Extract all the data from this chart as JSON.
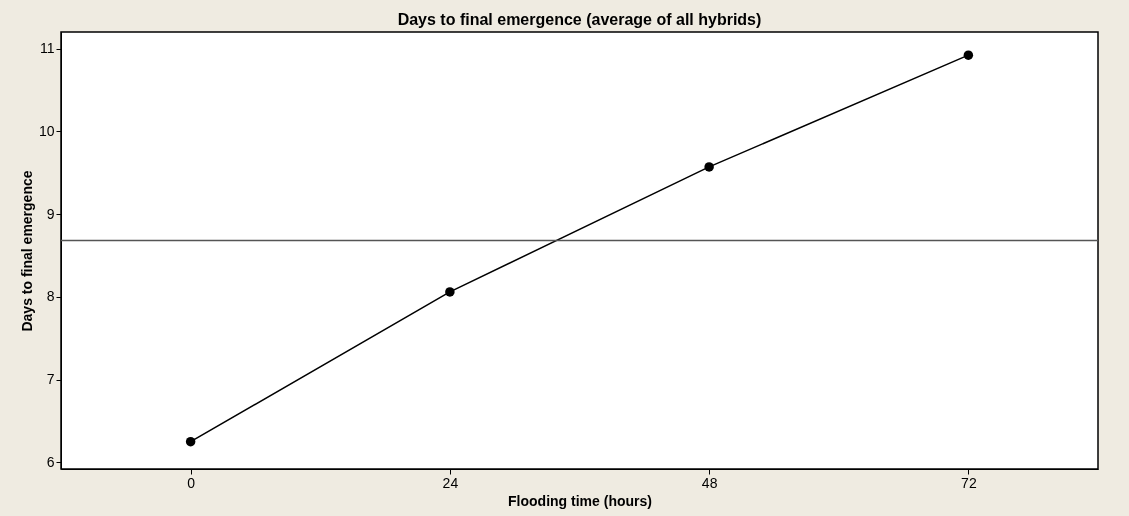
{
  "chart_data": {
    "type": "line",
    "title": "Days to final emergence (average of all hybrids)",
    "xlabel": "Flooding time (hours)",
    "ylabel": "Days to final emergence",
    "x": [
      0,
      24,
      48,
      72
    ],
    "series": [
      {
        "color": "#000000",
        "values": [
          6.25,
          8.06,
          9.57,
          10.92
        ]
      }
    ],
    "xlim": [
      -12,
      84
    ],
    "xticks": [
      0,
      24,
      48,
      72
    ],
    "ylim": [
      5.92,
      11.2
    ],
    "yticks": [
      6,
      7,
      8,
      9,
      10,
      11
    ],
    "ref_lines": [
      {
        "axis": "y",
        "value": 8.68,
        "label": null,
        "color": "#555555"
      }
    ],
    "marker": "circle",
    "line_style": "solid",
    "grid": false
  }
}
